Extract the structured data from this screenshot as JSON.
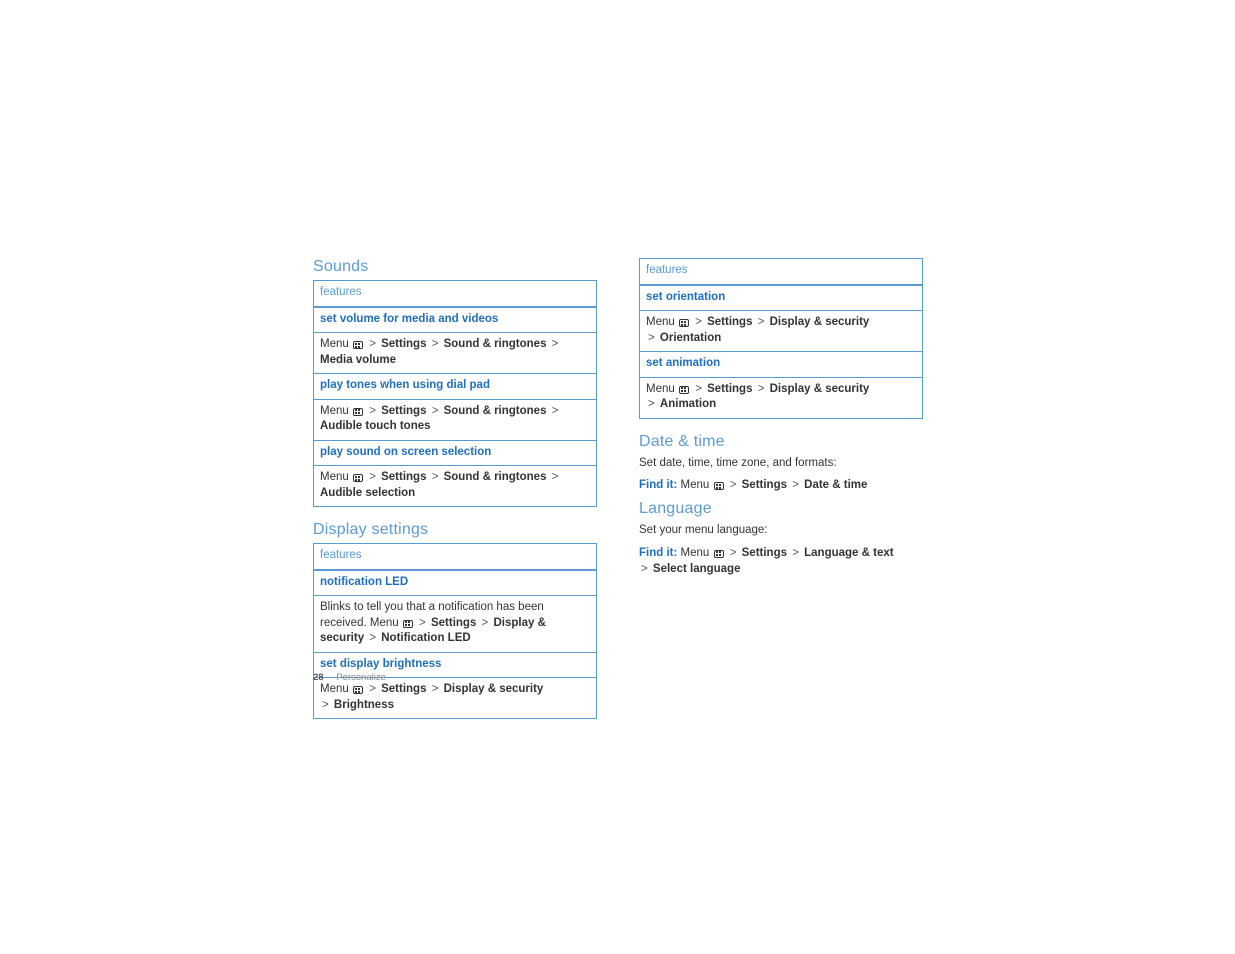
{
  "page_number": "28",
  "page_label": "Personalize",
  "ui": {
    "menu_label": "Menu",
    "features_header": "features",
    "find_it_label": "Find it:",
    "separator": ">"
  },
  "colors": {
    "accent": "#5b9bd5",
    "link": "#1f6fc0",
    "text": "#333333",
    "muted": "#888888",
    "background": "#ffffff"
  },
  "left": {
    "sounds": {
      "heading": "Sounds",
      "rows": [
        {
          "title": "set volume for media and videos",
          "path": [
            "Settings",
            "Sound & ringtones",
            "Media volume"
          ]
        },
        {
          "title": "play tones when using dial pad",
          "path": [
            "Settings",
            "Sound & ringtones",
            "Audible touch tones"
          ]
        },
        {
          "title": "play sound on screen selection",
          "path": [
            "Settings",
            "Sound & ringtones",
            "Audible selection"
          ]
        }
      ]
    },
    "display": {
      "heading": "Display settings",
      "rows": [
        {
          "title": "notification LED",
          "prefix_text": "Blinks to tell you that a notification has been received. ",
          "path": [
            "Settings",
            "Display & security",
            "Notification LED"
          ]
        },
        {
          "title": "set display brightness",
          "path": [
            "Settings",
            "Display & security",
            "Brightness"
          ]
        }
      ]
    }
  },
  "right": {
    "display_cont": {
      "rows": [
        {
          "title": "set orientation",
          "path": [
            "Settings",
            "Display & security",
            "Orientation"
          ]
        },
        {
          "title": "set animation",
          "path": [
            "Settings",
            "Display & security",
            "Animation"
          ]
        }
      ]
    },
    "datetime": {
      "heading": "Date & time",
      "desc": "Set date, time, time zone, and formats:",
      "path": [
        "Settings",
        "Date & time"
      ]
    },
    "language": {
      "heading": "Language",
      "desc": "Set your menu language:",
      "path": [
        "Settings",
        "Language & text",
        "Select language"
      ]
    }
  }
}
